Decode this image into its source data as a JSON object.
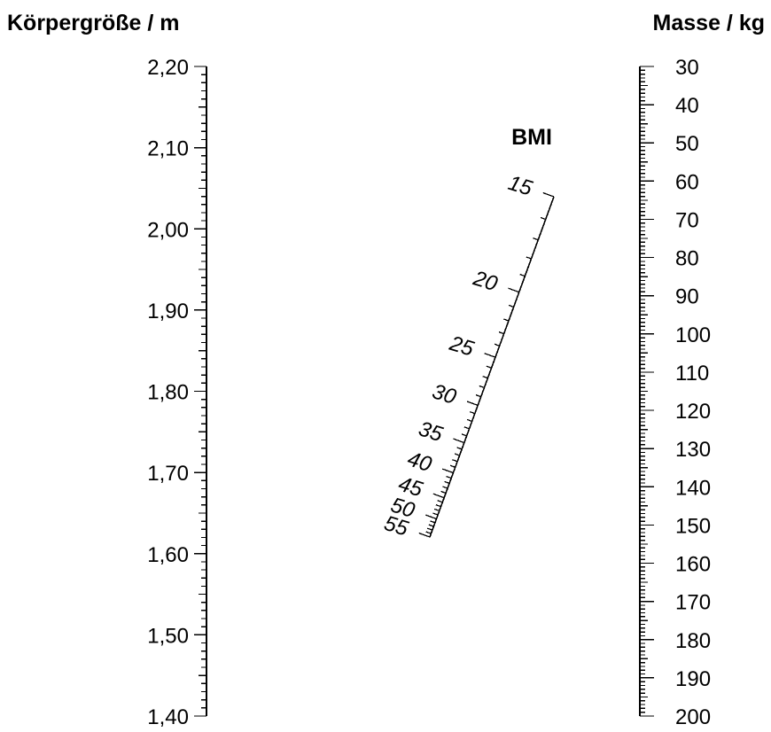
{
  "height_scale": {
    "title": "Körpergröße / m",
    "labels": [
      "2,20",
      "2,10",
      "2,00",
      "1,90",
      "1,80",
      "1,70",
      "1,60",
      "1,50",
      "1,40"
    ]
  },
  "mass_scale": {
    "title": "Masse / kg",
    "labels": [
      "30",
      "40",
      "50",
      "60",
      "70",
      "80",
      "90",
      "100",
      "110",
      "120",
      "130",
      "140",
      "150",
      "160",
      "170",
      "180",
      "190",
      "200"
    ]
  },
  "bmi_scale": {
    "title": "BMI",
    "labels": [
      "15",
      "20",
      "25",
      "30",
      "35",
      "40",
      "45",
      "50",
      "55"
    ]
  }
}
